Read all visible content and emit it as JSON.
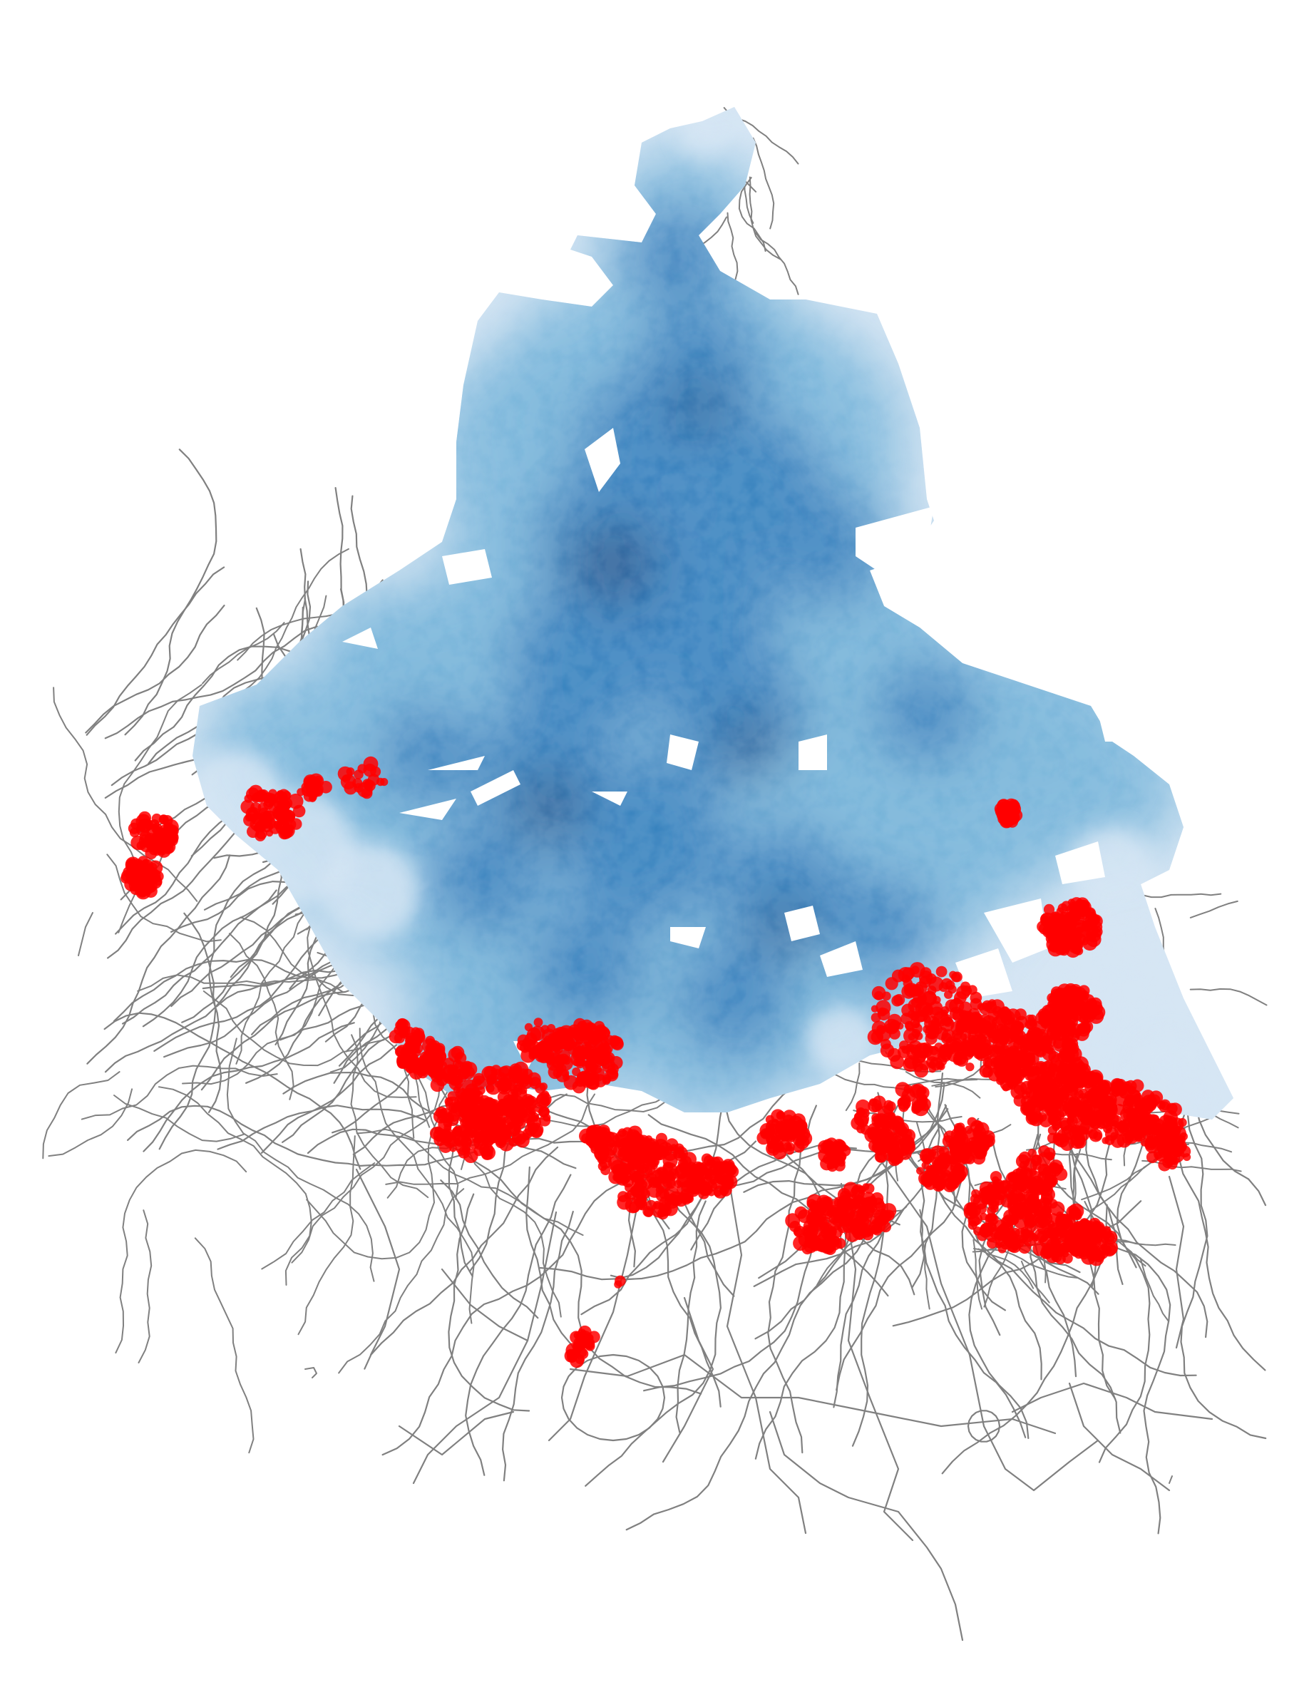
{
  "map": {
    "background_color": "#ffffff",
    "road_network": {
      "color": "#808080",
      "visible": true
    },
    "density_layer": {
      "colormap": "Blues",
      "colors": {
        "light": "#d6e6f4",
        "mid": "#6aaed6",
        "dark": "#2171b5",
        "darkest": "#08306b"
      },
      "visible": true
    },
    "highlight_points": {
      "color": "#ff0000",
      "visible": true
    },
    "legend_visible": false,
    "title_visible": false,
    "axes_visible": false
  }
}
